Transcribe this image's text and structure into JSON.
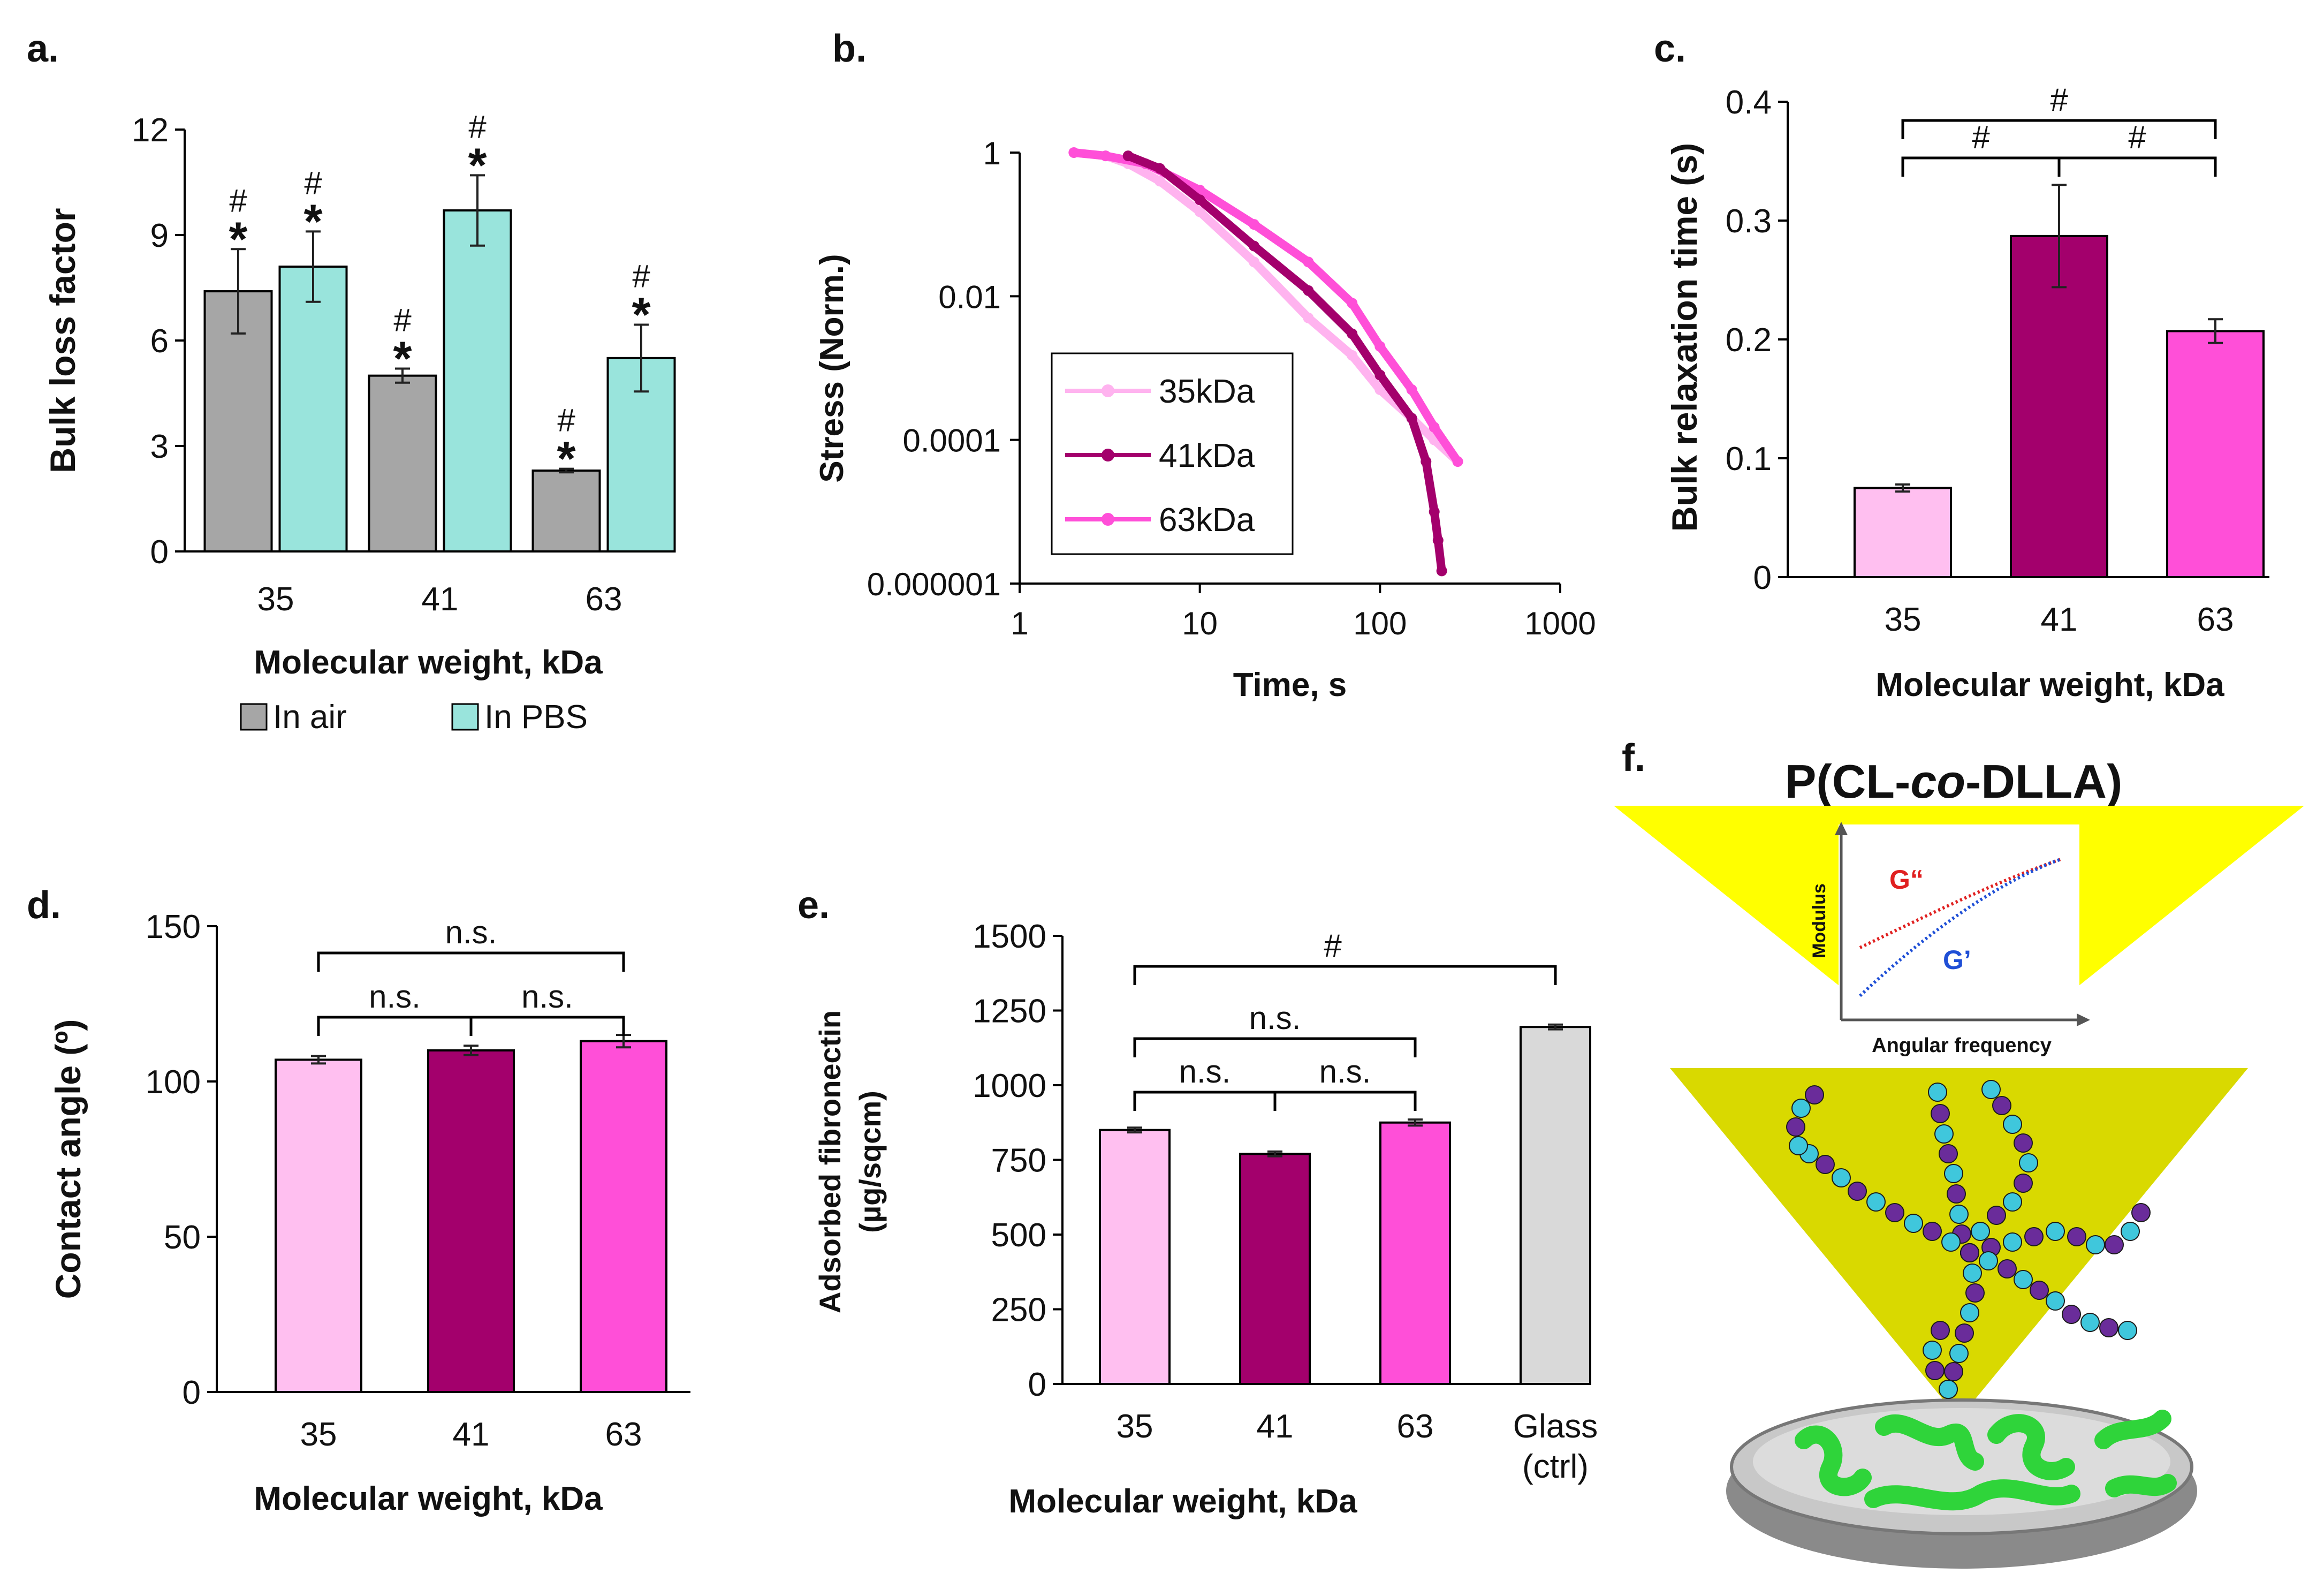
{
  "panels": {
    "a": {
      "label": "a.",
      "chart_data": {
        "type": "bar",
        "title": "",
        "xlabel": "Molecular weight, kDa",
        "ylabel": "Bulk loss factor",
        "categories": [
          "35",
          "41",
          "63"
        ],
        "yticks": [
          "0",
          "3",
          "6",
          "9",
          "12"
        ],
        "ylim": [
          0,
          12
        ],
        "series": [
          {
            "name": "In air",
            "color": "#a6a6a6",
            "values": [
              7.4,
              5.0,
              2.3
            ],
            "errors": [
              1.2,
              0.2,
              0.05
            ],
            "annotations": [
              "#",
              "*"
            ]
          },
          {
            "name": "In PBS",
            "color": "#99e4dc",
            "values": [
              8.1,
              9.7,
              5.5
            ],
            "errors": [
              1.0,
              1.0,
              0.95
            ],
            "annotations": [
              "#",
              "*"
            ]
          }
        ],
        "legend": [
          "In air",
          "In PBS"
        ],
        "legend_position": "bottom"
      }
    },
    "b": {
      "label": "b.",
      "chart_data": {
        "type": "scatter",
        "xscale": "log",
        "yscale": "log",
        "xlabel": "Time, s",
        "ylabel": "Stress (Norm.)",
        "xticks": [
          "1",
          "10",
          "100",
          "1000"
        ],
        "yticks": [
          "1",
          "0.01",
          "0.0001",
          "0.000001"
        ],
        "xlim": [
          1,
          1000
        ],
        "ylim": [
          1e-06,
          1
        ],
        "series": [
          {
            "name": "35kDa",
            "color": "#ffb3ef",
            "x": [
              2,
              3,
              4,
              6,
              10,
              20,
              40,
              70,
              100,
              150,
              200,
              270
            ],
            "y": [
              1,
              0.9,
              0.7,
              0.4,
              0.15,
              0.03,
              0.005,
              0.0015,
              0.0005,
              0.0002,
              0.0001,
              5e-05
            ]
          },
          {
            "name": "41kDa",
            "color": "#a3006c",
            "x": [
              4,
              6,
              10,
              20,
              40,
              70,
              100,
              150,
              180,
              200,
              210,
              220
            ],
            "y": [
              0.9,
              0.6,
              0.22,
              0.05,
              0.012,
              0.003,
              0.0008,
              0.0002,
              5e-05,
              1e-05,
              4e-06,
              1.5e-06
            ]
          },
          {
            "name": "63kDa",
            "color": "#ff4fd8",
            "x": [
              2,
              3,
              5,
              10,
              20,
              40,
              70,
              100,
              150,
              200,
              270
            ],
            "y": [
              1,
              0.9,
              0.7,
              0.3,
              0.1,
              0.03,
              0.008,
              0.002,
              0.0005,
              0.00015,
              5e-05
            ]
          }
        ],
        "legend": [
          "35kDa",
          "41kDa",
          "63kDa"
        ],
        "legend_position": "lower-left"
      }
    },
    "c": {
      "label": "c.",
      "chart_data": {
        "type": "bar",
        "xlabel": "Molecular weight, kDa",
        "ylabel": "Bulk relaxation time (s)",
        "categories": [
          "35",
          "41",
          "63"
        ],
        "values": [
          0.075,
          0.287,
          0.207
        ],
        "errors": [
          0.003,
          0.043,
          0.01
        ],
        "colors": [
          "#ffbff0",
          "#a3006c",
          "#ff4fd8"
        ],
        "yticks": [
          "0",
          "0.1",
          "0.2",
          "0.3",
          "0.4"
        ],
        "ylim": [
          0,
          0.4
        ],
        "significance": [
          {
            "from": 0,
            "to": 2,
            "label": "#"
          },
          {
            "from": 0,
            "to": 1,
            "label": "#"
          },
          {
            "from": 1,
            "to": 2,
            "label": "#"
          }
        ]
      }
    },
    "d": {
      "label": "d.",
      "chart_data": {
        "type": "bar",
        "xlabel": "Molecular weight, kDa",
        "ylabel": "Contact angle (º)",
        "categories": [
          "35",
          "41",
          "63"
        ],
        "values": [
          107,
          110,
          113
        ],
        "errors": [
          1.2,
          1.5,
          2.0
        ],
        "colors": [
          "#ffbff0",
          "#a3006c",
          "#ff4fd8"
        ],
        "yticks": [
          "0",
          "50",
          "100",
          "150"
        ],
        "ylim": [
          0,
          150
        ],
        "significance": [
          {
            "from": 0,
            "to": 2,
            "label": "n.s."
          },
          {
            "from": 0,
            "to": 1,
            "label": "n.s."
          },
          {
            "from": 1,
            "to": 2,
            "label": "n.s."
          }
        ]
      }
    },
    "e": {
      "label": "e.",
      "chart_data": {
        "type": "bar",
        "xlabel": "Molecular weight, kDa",
        "ylabel_lines": [
          "Adsorbed fibronectin",
          "(µg/sqcm)"
        ],
        "categories": [
          "35",
          "41",
          "63",
          "Glass (ctrl)"
        ],
        "category_lines": [
          [
            "35"
          ],
          [
            "41"
          ],
          [
            "63"
          ],
          [
            "Glass",
            "(ctrl)"
          ]
        ],
        "values": [
          850,
          770,
          875,
          1195
        ],
        "errors": [
          8,
          8,
          10,
          8
        ],
        "colors": [
          "#ffbff0",
          "#a3006c",
          "#ff4fd8",
          "#d9d9d9"
        ],
        "yticks": [
          "0",
          "250",
          "500",
          "750",
          "1000",
          "1250",
          "1500"
        ],
        "ylim": [
          0,
          1500
        ],
        "significance": [
          {
            "from": 0,
            "to": 3,
            "label": "#"
          },
          {
            "from": 0,
            "to": 2,
            "label": "n.s."
          },
          {
            "from": 0,
            "to": 1,
            "label": "n.s."
          },
          {
            "from": 1,
            "to": 2,
            "label": "n.s."
          }
        ]
      }
    },
    "f": {
      "label": "f.",
      "title_pre": "P(CL-",
      "title_italic": "co",
      "title_post": "-DLLA)",
      "inset": {
        "xlabel": "Angular frequency",
        "ylabel": "Modulus",
        "curve1_label": "G“",
        "curve1_color": "#e02020",
        "curve2_label": "G’",
        "curve2_color": "#1f4fd6"
      },
      "colors": {
        "triangle": "#ffff00",
        "triangle_lower": "#d9d900",
        "bead_a": "#3fc7dc",
        "bead_b": "#6a2c9a",
        "gel": "#2fd43a"
      }
    }
  }
}
